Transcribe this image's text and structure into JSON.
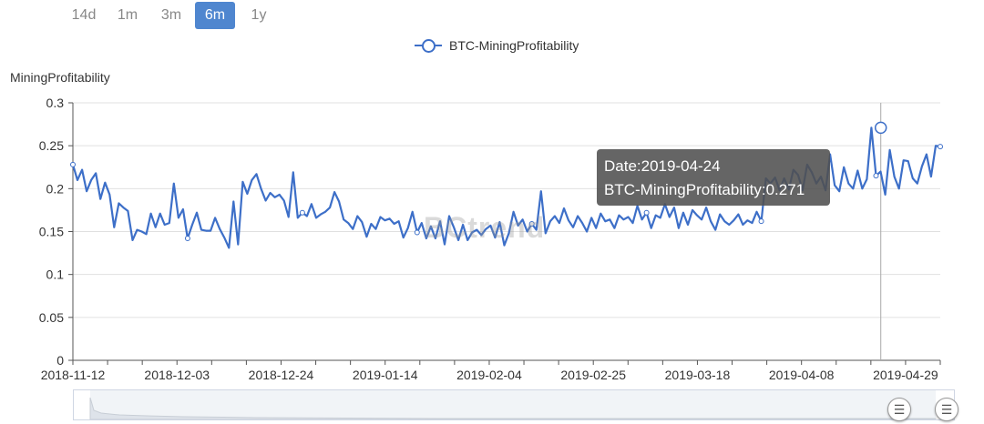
{
  "range_buttons": [
    {
      "label": "14d",
      "active": false
    },
    {
      "label": "1m",
      "active": false
    },
    {
      "label": "3m",
      "active": false
    },
    {
      "label": "6m",
      "active": true
    },
    {
      "label": "1y",
      "active": false
    }
  ],
  "legend": {
    "label": "BTC-MiningProfitability"
  },
  "watermark": "BCtrend",
  "tooltip": {
    "line1": "Date:2019-04-24",
    "line2": "BTC-MiningProfitability:0.271"
  },
  "zoom": {
    "handle_left": "☰",
    "handle_right": "☰"
  },
  "chart_data": {
    "type": "line",
    "title": "",
    "xlabel": "",
    "ylabel": "MiningProfitability",
    "ylim": [
      0,
      0.3
    ],
    "yticks": [
      0,
      0.05,
      0.1,
      0.15,
      0.2,
      0.25,
      0.3
    ],
    "ytick_labels": [
      "0",
      "0.05",
      "0.1",
      "0.15",
      "0.2",
      "0.25",
      "0.3"
    ],
    "x_start": "2018-11-12",
    "x_end": "2019-05-06",
    "xtick_labels": [
      "2018-11-12",
      "2018-12-03",
      "2018-12-24",
      "2019-01-14",
      "2019-02-04",
      "2019-02-25",
      "2019-03-18",
      "2019-04-08",
      "2019-04-29"
    ],
    "grid": true,
    "legend_position": "top-center",
    "highlight": {
      "x": "2019-04-24",
      "y": 0.271
    },
    "series": [
      {
        "name": "BTC-MiningProfitability",
        "color": "#3d6fc8",
        "values": [
          0.228,
          0.21,
          0.222,
          0.197,
          0.21,
          0.218,
          0.188,
          0.207,
          0.193,
          0.155,
          0.183,
          0.178,
          0.174,
          0.14,
          0.152,
          0.15,
          0.147,
          0.171,
          0.155,
          0.171,
          0.158,
          0.16,
          0.206,
          0.166,
          0.176,
          0.142,
          0.158,
          0.172,
          0.152,
          0.151,
          0.151,
          0.166,
          0.153,
          0.143,
          0.131,
          0.185,
          0.135,
          0.208,
          0.194,
          0.21,
          0.217,
          0.2,
          0.186,
          0.195,
          0.19,
          0.193,
          0.186,
          0.167,
          0.219,
          0.166,
          0.172,
          0.168,
          0.182,
          0.166,
          0.17,
          0.173,
          0.178,
          0.196,
          0.185,
          0.164,
          0.16,
          0.153,
          0.168,
          0.161,
          0.144,
          0.159,
          0.153,
          0.167,
          0.163,
          0.165,
          0.159,
          0.162,
          0.143,
          0.154,
          0.173,
          0.149,
          0.16,
          0.142,
          0.156,
          0.142,
          0.162,
          0.135,
          0.168,
          0.155,
          0.14,
          0.158,
          0.14,
          0.149,
          0.152,
          0.146,
          0.153,
          0.157,
          0.143,
          0.161,
          0.134,
          0.148,
          0.173,
          0.157,
          0.164,
          0.15,
          0.159,
          0.152,
          0.197,
          0.148,
          0.162,
          0.168,
          0.16,
          0.177,
          0.163,
          0.155,
          0.168,
          0.16,
          0.15,
          0.166,
          0.154,
          0.171,
          0.162,
          0.164,
          0.154,
          0.169,
          0.164,
          0.167,
          0.16,
          0.18,
          0.164,
          0.172,
          0.154,
          0.169,
          0.166,
          0.182,
          0.167,
          0.178,
          0.154,
          0.172,
          0.158,
          0.175,
          0.169,
          0.164,
          0.178,
          0.162,
          0.152,
          0.17,
          0.162,
          0.158,
          0.163,
          0.17,
          0.158,
          0.163,
          0.16,
          0.173,
          0.162,
          0.212,
          0.206,
          0.213,
          0.198,
          0.212,
          0.199,
          0.222,
          0.216,
          0.198,
          0.228,
          0.219,
          0.206,
          0.214,
          0.198,
          0.24,
          0.204,
          0.197,
          0.225,
          0.206,
          0.2,
          0.221,
          0.2,
          0.211,
          0.271,
          0.215,
          0.22,
          0.193,
          0.245,
          0.214,
          0.2,
          0.233,
          0.232,
          0.212,
          0.206,
          0.226,
          0.24,
          0.214,
          0.25,
          0.249
        ]
      }
    ]
  }
}
